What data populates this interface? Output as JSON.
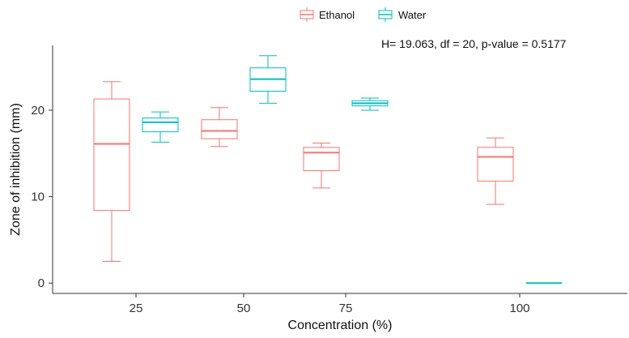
{
  "chart_data": {
    "type": "boxplot",
    "annotation": "H= 19.063, df = 20, p-value = 0.5177",
    "xlabel": "Concentration (%)",
    "ylabel": "Zone of inhibition (mm)",
    "categories": [
      "25",
      "50",
      "75",
      "100"
    ],
    "ylim": [
      -1.2,
      27.5
    ],
    "yticks": [
      0,
      10,
      20
    ],
    "grid": false,
    "legend_position": "top",
    "series": [
      {
        "name": "Ethanol",
        "color": "#F8766D",
        "boxes": [
          {
            "category": "25",
            "min": 2.5,
            "q1": 8.4,
            "median": 16.1,
            "q3": 21.3,
            "max": 23.3
          },
          {
            "category": "50",
            "min": 15.8,
            "q1": 16.7,
            "median": 17.6,
            "q3": 18.9,
            "max": 20.3
          },
          {
            "category": "75",
            "min": 11.0,
            "q1": 13.0,
            "median": 15.1,
            "q3": 15.7,
            "max": 16.2
          },
          {
            "category": "100",
            "min": 9.1,
            "q1": 11.8,
            "median": 14.6,
            "q3": 15.7,
            "max": 16.8
          }
        ]
      },
      {
        "name": "Water",
        "color": "#00BFC4",
        "boxes": [
          {
            "category": "25",
            "min": 16.3,
            "q1": 17.5,
            "median": 18.6,
            "q3": 19.1,
            "max": 19.8
          },
          {
            "category": "50",
            "min": 20.8,
            "q1": 22.2,
            "median": 23.6,
            "q3": 24.9,
            "max": 26.3
          },
          {
            "category": "75",
            "min": 20.0,
            "q1": 20.5,
            "median": 20.8,
            "q3": 21.1,
            "max": 21.4
          },
          {
            "category": "100",
            "min": 0,
            "q1": 0,
            "median": 0,
            "q3": 0,
            "max": 0
          }
        ]
      }
    ]
  }
}
